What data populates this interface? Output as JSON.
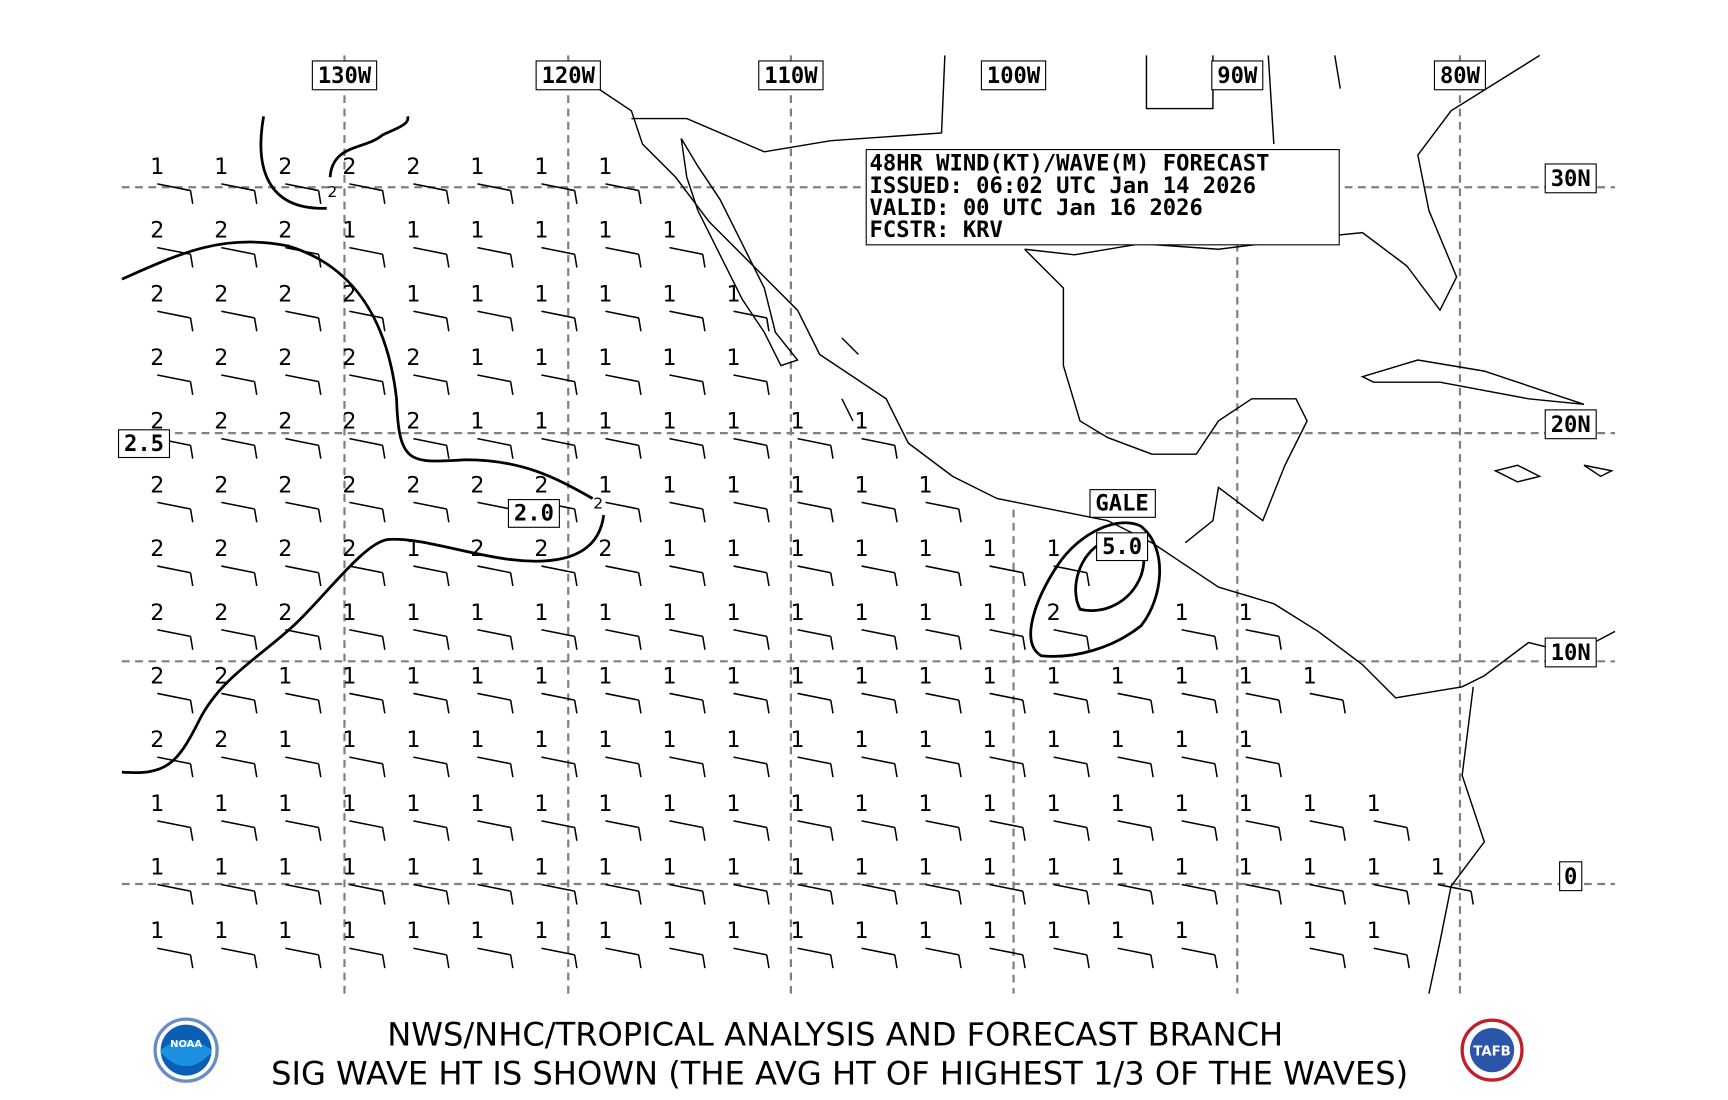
{
  "header": {
    "lines": [
      "48HR WIND(KT)/WAVE(M) FORECAST",
      "ISSUED: 06:02 UTC Jan 14 2026",
      "VALID: 00 UTC Jan 16 2026",
      "FCSTR: KRV"
    ]
  },
  "longitude_labels": [
    "130W",
    "120W",
    "110W",
    "100W",
    "90W",
    "80W"
  ],
  "latitude_labels": [
    "30N",
    "20N",
    "10N",
    "0"
  ],
  "contour_labels": [
    "2.5",
    "2.0",
    "5.0"
  ],
  "contour_small_labels": [
    "2",
    "2"
  ],
  "warning_label": "GALE",
  "footer": {
    "line1": "NWS/NHC/TROPICAL ANALYSIS AND FORECAST BRANCH",
    "line2": "SIG WAVE HT IS SHOWN (THE AVG HT OF HIGHEST 1/3 OF THE WAVES)"
  },
  "logos": {
    "left": "NOAA",
    "right": "TAFB"
  },
  "wave_heights_m": [
    [
      1,
      1,
      2,
      2,
      2,
      1,
      1,
      1
    ],
    [
      2,
      2,
      2,
      1,
      1,
      1,
      1,
      1,
      1
    ],
    [
      2,
      2,
      2,
      2,
      1,
      1,
      1,
      1,
      1,
      1
    ],
    [
      2,
      2,
      2,
      2,
      2,
      1,
      1,
      1,
      1,
      1
    ],
    [
      2,
      2,
      2,
      2,
      2,
      1,
      1,
      1,
      1,
      1,
      1,
      1
    ],
    [
      2,
      2,
      2,
      2,
      2,
      2,
      2,
      1,
      1,
      1,
      1,
      1,
      1
    ],
    [
      2,
      2,
      2,
      2,
      1,
      2,
      2,
      2,
      1,
      1,
      1,
      1,
      1,
      1,
      1
    ],
    [
      2,
      2,
      2,
      1,
      1,
      1,
      1,
      1,
      1,
      1,
      1,
      1,
      1,
      1,
      2,
      null,
      1,
      1
    ],
    [
      2,
      2,
      1,
      1,
      1,
      1,
      1,
      1,
      1,
      1,
      1,
      1,
      1,
      1,
      1,
      1,
      1,
      1,
      1
    ],
    [
      2,
      2,
      1,
      1,
      1,
      1,
      1,
      1,
      1,
      1,
      1,
      1,
      1,
      1,
      1,
      1,
      1,
      1
    ],
    [
      1,
      1,
      1,
      1,
      1,
      1,
      1,
      1,
      1,
      1,
      1,
      1,
      1,
      1,
      1,
      1,
      1,
      1,
      1,
      1
    ],
    [
      1,
      1,
      1,
      1,
      1,
      1,
      1,
      1,
      1,
      1,
      1,
      1,
      1,
      1,
      1,
      1,
      1,
      1,
      1,
      1,
      1
    ],
    [
      1,
      1,
      1,
      1,
      1,
      1,
      1,
      1,
      1,
      1,
      1,
      1,
      1,
      1,
      1,
      1,
      1,
      null,
      1,
      1
    ]
  ],
  "colors": {
    "grid": "#808080",
    "lines": "#000000",
    "noaa_blue": "#0a5fb4",
    "tafb_red": "#c0202a"
  }
}
